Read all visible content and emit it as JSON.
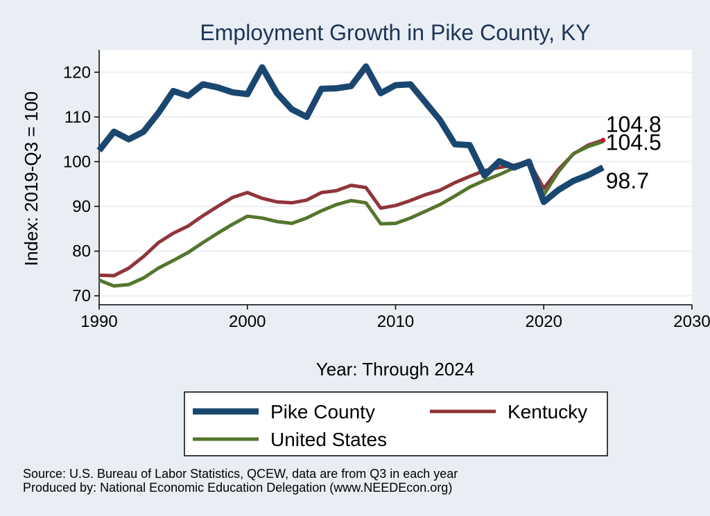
{
  "chart_data": {
    "type": "line",
    "title": "Employment Growth in Pike County, KY",
    "xlabel": "Year: Through 2024",
    "ylabel": "Index: 2019-Q3 = 100",
    "xlim": [
      1990,
      2030
    ],
    "ylim": [
      68,
      125
    ],
    "xticks": [
      1990,
      2000,
      2010,
      2020,
      2030
    ],
    "yticks": [
      70,
      80,
      90,
      100,
      110,
      120
    ],
    "grid": true,
    "legend_position": "bottom",
    "x": [
      1990,
      1991,
      1992,
      1993,
      1994,
      1995,
      1996,
      1997,
      1998,
      1999,
      2000,
      2001,
      2002,
      2003,
      2004,
      2005,
      2006,
      2007,
      2008,
      2009,
      2010,
      2011,
      2012,
      2013,
      2014,
      2015,
      2016,
      2017,
      2018,
      2019,
      2020,
      2021,
      2022,
      2023,
      2024
    ],
    "series": [
      {
        "name": "Pike  County",
        "color": "#1a476f",
        "values": [
          102.5,
          106.7,
          105.0,
          106.7,
          110.9,
          115.8,
          114.7,
          117.3,
          116.6,
          115.5,
          115.1,
          121.1,
          115.3,
          111.7,
          110.0,
          116.3,
          116.4,
          116.9,
          121.3,
          115.3,
          117.1,
          117.3,
          113.3,
          109.3,
          103.9,
          103.7,
          96.9,
          100.1,
          98.7,
          100.0,
          91.0,
          93.7,
          95.7,
          97.0,
          98.7
        ],
        "end_label": "98.7"
      },
      {
        "name": "Kentucky",
        "color": "#90353b",
        "values": [
          74.6,
          74.5,
          76.2,
          78.8,
          81.9,
          84.0,
          85.6,
          87.9,
          90.0,
          92.0,
          93.1,
          91.8,
          91.0,
          90.8,
          91.4,
          93.1,
          93.5,
          94.7,
          94.2,
          89.6,
          90.2,
          91.3,
          92.6,
          93.6,
          95.3,
          96.7,
          98.0,
          98.7,
          99.2,
          100.0,
          94.0,
          98.3,
          101.7,
          103.7,
          104.8
        ],
        "end_label": "104.8"
      },
      {
        "name": "United States",
        "color": "#55752f",
        "values": [
          73.5,
          72.2,
          72.5,
          74.0,
          76.2,
          77.9,
          79.7,
          81.9,
          84.0,
          86.0,
          87.8,
          87.4,
          86.6,
          86.2,
          87.4,
          89.0,
          90.4,
          91.3,
          90.8,
          86.1,
          86.2,
          87.4,
          88.9,
          90.4,
          92.3,
          94.3,
          95.8,
          97.1,
          98.6,
          100.0,
          92.6,
          97.8,
          101.8,
          103.4,
          104.5
        ],
        "end_label": "104.5"
      }
    ],
    "notes": [
      "Source: U.S. Bureau of Labor Statistics, QCEW, data are from Q3 in each year",
      "Produced by: National Economic Education Delegation (www.NEEDEcon.org)"
    ]
  }
}
